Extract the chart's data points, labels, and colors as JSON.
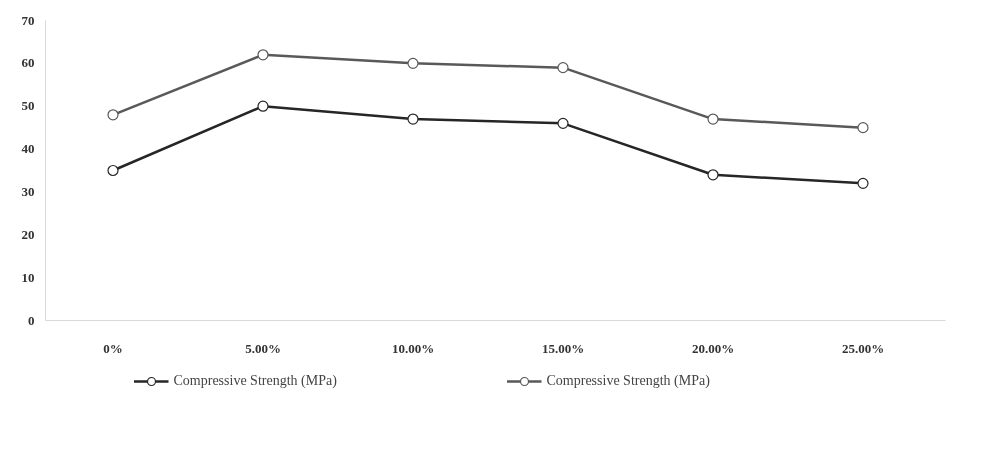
{
  "chart_data": {
    "type": "line",
    "categories": [
      "0%",
      "5.00%",
      "10.00%",
      "15.00%",
      "20.00%",
      "25.00%"
    ],
    "series": [
      {
        "name": "Compressive Strength (MPa)",
        "color": "#262626",
        "values": [
          35,
          50,
          47,
          46,
          34,
          32
        ]
      },
      {
        "name": "Compressive Strength (MPa)",
        "color": "#595959",
        "values": [
          48,
          62,
          60,
          59,
          47,
          45
        ]
      }
    ],
    "ylim": [
      0,
      70
    ],
    "yticks": [
      0,
      10,
      20,
      30,
      40,
      50,
      60,
      70
    ],
    "grid": false,
    "legend": "bottom",
    "marker": "circle",
    "line_style": "solid"
  }
}
